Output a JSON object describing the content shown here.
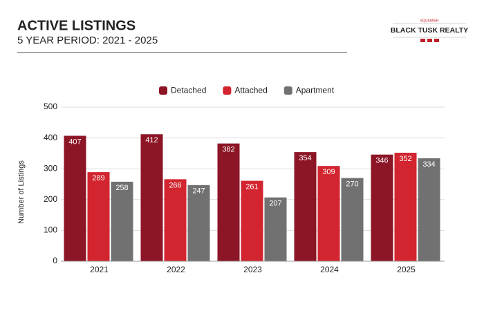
{
  "logo": {
    "tagline": "SQUAMISH",
    "name": "BLACK TUSK REALTY"
  },
  "chart_data": {
    "type": "bar",
    "title": "ACTIVE LISTINGS",
    "subtitle": "5 YEAR PERIOD: 2021 - 2025",
    "y_label": "Number of Listings",
    "categories": [
      "2021",
      "2022",
      "2023",
      "2024",
      "2025"
    ],
    "series": [
      {
        "name": "Detached",
        "color": "#8c1526",
        "values": [
          407,
          412,
          382,
          354,
          346
        ]
      },
      {
        "name": "Attached",
        "color": "#d2252f",
        "values": [
          289,
          266,
          261,
          309,
          352
        ]
      },
      {
        "name": "Apartment",
        "color": "#717171",
        "values": [
          258,
          247,
          207,
          270,
          334
        ]
      }
    ],
    "ylim": [
      0,
      500
    ],
    "yticks": [
      0,
      100,
      200,
      300,
      400,
      500
    ],
    "grid": true,
    "legend": "top"
  }
}
